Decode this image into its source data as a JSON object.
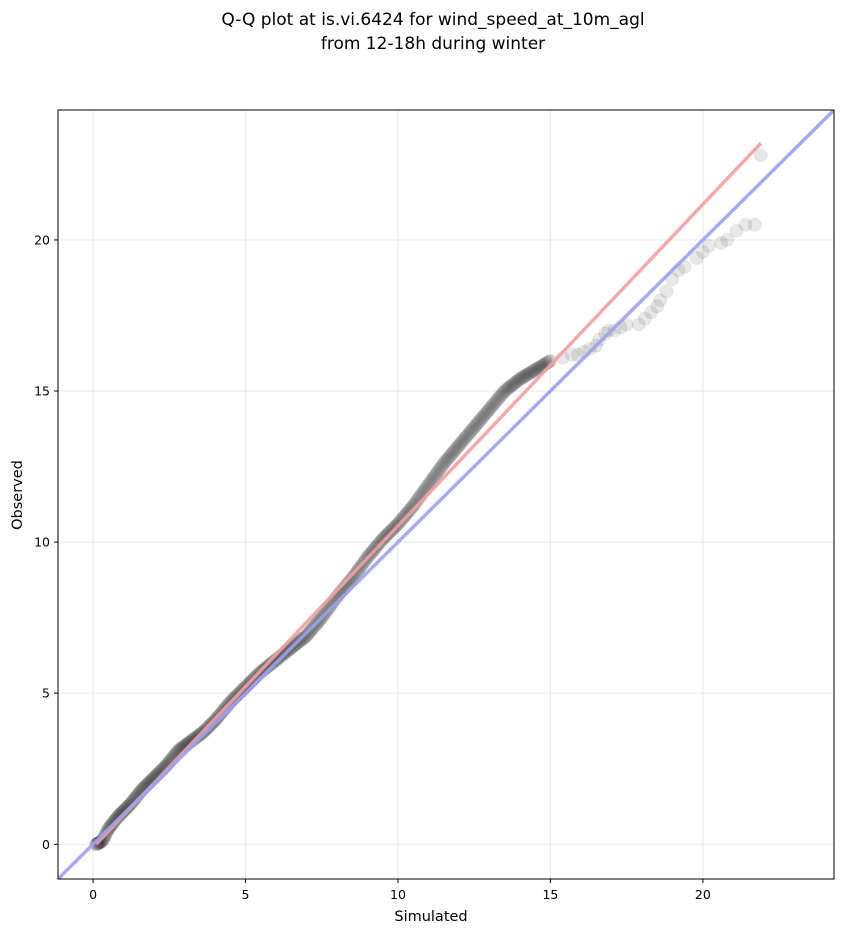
{
  "chart_data": {
    "type": "scatter",
    "title_lines": [
      "Q-Q plot at is.vi.6424 for wind_speed_at_10m_agl",
      "from 12-18h during winter"
    ],
    "xlabel": "Simulated",
    "ylabel": "Observed",
    "xlim": [
      -1.15,
      24.3
    ],
    "ylim": [
      -1.15,
      24.3
    ],
    "xticks": [
      0,
      5,
      10,
      15,
      20
    ],
    "yticks": [
      0,
      5,
      10,
      15,
      20
    ],
    "grid": true,
    "point_color": "#000000",
    "point_alpha": 0.09,
    "dense_knots": [
      [
        0.1,
        0.0
      ],
      [
        0.3,
        0.1
      ],
      [
        0.5,
        0.5
      ],
      [
        0.8,
        0.9
      ],
      [
        1.2,
        1.3
      ],
      [
        1.6,
        1.8
      ],
      [
        2.0,
        2.2
      ],
      [
        2.4,
        2.6
      ],
      [
        2.8,
        3.1
      ],
      [
        3.2,
        3.4
      ],
      [
        3.6,
        3.7
      ],
      [
        4.0,
        4.1
      ],
      [
        4.5,
        4.7
      ],
      [
        5.0,
        5.2
      ],
      [
        5.5,
        5.7
      ],
      [
        6.0,
        6.1
      ],
      [
        6.5,
        6.5
      ],
      [
        7.0,
        6.9
      ],
      [
        7.5,
        7.5
      ],
      [
        8.0,
        8.2
      ],
      [
        8.5,
        8.8
      ],
      [
        9.0,
        9.5
      ],
      [
        9.5,
        10.1
      ],
      [
        10.0,
        10.6
      ],
      [
        10.5,
        11.2
      ],
      [
        11.0,
        11.9
      ],
      [
        11.5,
        12.6
      ],
      [
        12.0,
        13.2
      ],
      [
        12.5,
        13.8
      ],
      [
        13.0,
        14.4
      ],
      [
        13.5,
        15.0
      ],
      [
        14.0,
        15.4
      ],
      [
        14.5,
        15.7
      ],
      [
        15.0,
        16.0
      ]
    ],
    "dense_count": 420,
    "tail_points": [
      [
        15.4,
        16.1
      ],
      [
        15.7,
        16.2
      ],
      [
        15.9,
        16.2
      ],
      [
        16.1,
        16.3
      ],
      [
        16.3,
        16.4
      ],
      [
        16.5,
        16.5
      ],
      [
        16.6,
        16.7
      ],
      [
        16.8,
        16.9
      ],
      [
        16.9,
        17.0
      ],
      [
        17.1,
        17.0
      ],
      [
        17.3,
        17.1
      ],
      [
        17.5,
        17.2
      ],
      [
        17.9,
        17.2
      ],
      [
        18.1,
        17.4
      ],
      [
        18.3,
        17.6
      ],
      [
        18.5,
        17.8
      ],
      [
        18.6,
        18.0
      ],
      [
        18.8,
        18.3
      ],
      [
        19.0,
        18.7
      ],
      [
        19.2,
        19.0
      ],
      [
        19.4,
        19.1
      ],
      [
        19.8,
        19.4
      ],
      [
        20.0,
        19.6
      ],
      [
        20.2,
        19.8
      ],
      [
        20.6,
        19.9
      ],
      [
        20.8,
        20.0
      ],
      [
        21.1,
        20.3
      ],
      [
        21.4,
        20.5
      ],
      [
        21.7,
        20.5
      ],
      [
        21.9,
        22.8
      ]
    ],
    "lines": [
      {
        "color": "#f0a0a0",
        "x": [
          0.1,
          21.9
        ],
        "y": [
          0.0,
          23.2
        ]
      },
      {
        "color": "#a0a0f0",
        "x": [
          -1.15,
          24.3
        ],
        "y": [
          -1.15,
          24.3
        ]
      }
    ]
  }
}
